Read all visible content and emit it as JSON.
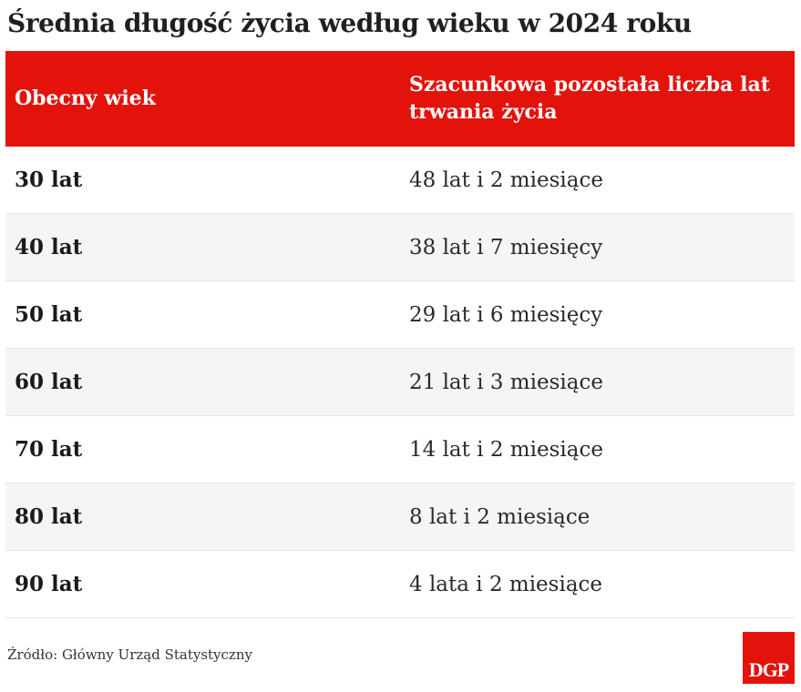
{
  "title": "Średnia długość życia według wieku w 2024 roku",
  "table": {
    "headers": {
      "age": "Obecny wiek",
      "remaining": "Szacunkowa pozostała liczba lat trwania życia"
    },
    "rows": [
      {
        "age": "30 lat",
        "remaining": "48 lat i 2 miesiące"
      },
      {
        "age": "40 lat",
        "remaining": "38 lat i 7 miesięcy"
      },
      {
        "age": "50 lat",
        "remaining": "29 lat i 6 miesięcy"
      },
      {
        "age": "60 lat",
        "remaining": "21 lat i 3 miesiące"
      },
      {
        "age": "70 lat",
        "remaining": "14 lat i 2 miesiące"
      },
      {
        "age": "80 lat",
        "remaining": "8 lat i 2 miesiące"
      },
      {
        "age": "90 lat",
        "remaining": "4 lata i 2 miesiące"
      }
    ]
  },
  "source": "Źródło: Główny Urząd Statystyczny",
  "logo": {
    "text": "DGP"
  },
  "colors": {
    "accent": "#e3120b",
    "header_text": "#ffffff",
    "row_alt": "#f5f5f5"
  }
}
